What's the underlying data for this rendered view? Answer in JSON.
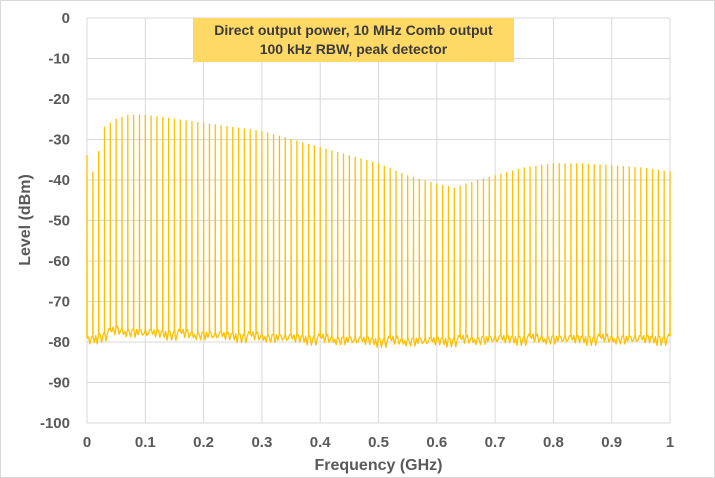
{
  "chart_data": {
    "type": "line",
    "title_lines": [
      "Direct output power, 10 MHz Comb output",
      "100 kHz RBW, peak detector"
    ],
    "xlabel": "Frequency (GHz)",
    "ylabel": "Level (dBm)",
    "xlim": [
      0,
      1
    ],
    "ylim": [
      -100,
      0
    ],
    "x_ticks": [
      0,
      0.1,
      0.2,
      0.3,
      0.4,
      0.5,
      0.6,
      0.7,
      0.8,
      0.9,
      1
    ],
    "x_tick_labels": [
      "0",
      "0.1",
      "0.2",
      "0.3",
      "0.4",
      "0.5",
      "0.6",
      "0.7",
      "0.8",
      "0.9",
      "1"
    ],
    "y_ticks": [
      0,
      -10,
      -20,
      -30,
      -40,
      -50,
      -60,
      -70,
      -80,
      -90,
      -100
    ],
    "y_tick_labels": [
      "0",
      "-10",
      "-20",
      "-30",
      "-40",
      "-50",
      "-60",
      "-70",
      "-80",
      "-90",
      "-100"
    ],
    "grid": true,
    "legend": "none",
    "line_color": "#FFC000",
    "title_box_color": "#FFD966",
    "comb_spacing_ghz": 0.01,
    "peak_envelope": {
      "x": [
        0,
        0.01,
        0.02,
        0.03,
        0.05,
        0.07,
        0.1,
        0.15,
        0.2,
        0.25,
        0.3,
        0.35,
        0.4,
        0.45,
        0.5,
        0.55,
        0.6,
        0.63,
        0.65,
        0.7,
        0.75,
        0.8,
        0.85,
        0.9,
        0.95,
        1.0
      ],
      "y": [
        -34,
        -38,
        -33,
        -27,
        -25,
        -24,
        -24,
        -25,
        -26,
        -27,
        -28,
        -30,
        -32,
        -34,
        -36,
        -39,
        -41,
        -42,
        -41,
        -39,
        -37,
        -36,
        -36,
        -36.5,
        -37,
        -38
      ]
    },
    "floor_envelope": {
      "x": [
        0,
        0.02,
        0.05,
        0.1,
        0.2,
        0.3,
        0.4,
        0.5,
        0.6,
        0.7,
        0.8,
        0.9,
        1.0
      ],
      "y": [
        -80,
        -79,
        -77.5,
        -78,
        -78.5,
        -79,
        -79.5,
        -80,
        -80,
        -79.5,
        -79.5,
        -79.5,
        -79.5
      ]
    }
  }
}
